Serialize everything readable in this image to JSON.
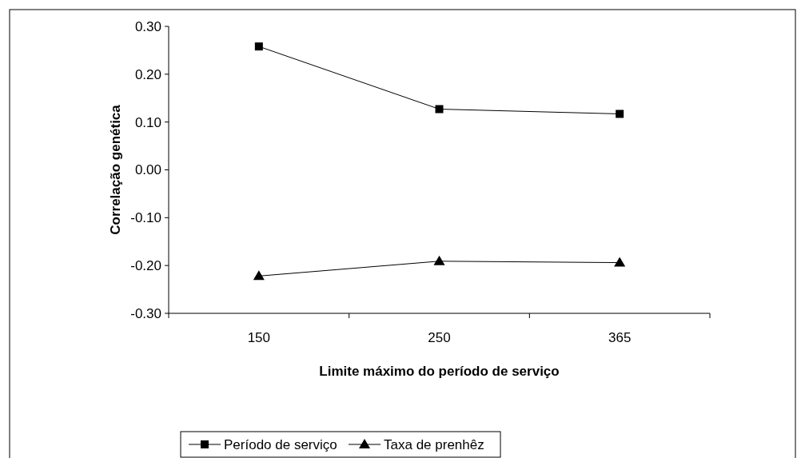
{
  "chart_data": {
    "type": "line",
    "xlabel": "Limite máximo do período de serviço",
    "ylabel": "Correlação genética",
    "categories": [
      "150",
      "250",
      "365"
    ],
    "series": [
      {
        "name": "Período de serviço",
        "color": "#000000",
        "marker": "square",
        "values": [
          0.258,
          0.127,
          0.117
        ]
      },
      {
        "name": "Taxa de prenhêz",
        "color": "#000000",
        "marker": "triangle",
        "values": [
          -0.222,
          -0.191,
          -0.194
        ]
      }
    ],
    "ylim": [
      -0.3,
      0.3
    ],
    "yticks": [
      {
        "value": -0.3,
        "label": "-0.30"
      },
      {
        "value": -0.2,
        "label": "-0.20"
      },
      {
        "value": -0.1,
        "label": "-0.10"
      },
      {
        "value": 0,
        "label": "0.00"
      },
      {
        "value": 0.1,
        "label": "0.10"
      },
      {
        "value": 0.2,
        "label": "0.20"
      },
      {
        "value": 0.3,
        "label": "0.30"
      }
    ],
    "grid": false,
    "legend": "bottom",
    "line_style": "solid"
  }
}
